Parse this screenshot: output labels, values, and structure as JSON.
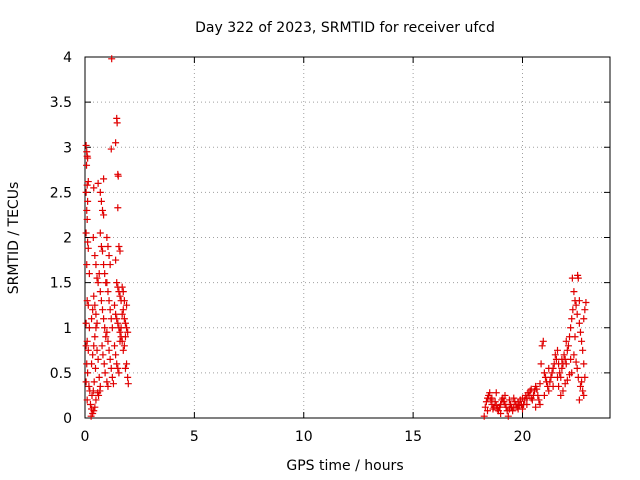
{
  "chart_data": {
    "type": "scatter",
    "title": "Day 322 of 2023, SRMTID for receiver ufcd",
    "xlabel": "GPS time / hours",
    "ylabel": "SRMTID / TECUs",
    "xlim": [
      0,
      24
    ],
    "ylim": [
      0,
      4
    ],
    "xticks": [
      0,
      5,
      10,
      15,
      20
    ],
    "yticks": [
      0,
      0.5,
      1,
      1.5,
      2,
      2.5,
      3,
      3.5,
      4
    ],
    "grid": true,
    "marker": "+",
    "color": "#e00000",
    "series": [
      {
        "name": "SRMTID",
        "points": [
          [
            0.05,
            3.02
          ],
          [
            0.08,
            2.95
          ],
          [
            0.1,
            2.9
          ],
          [
            0.12,
            2.88
          ],
          [
            0.07,
            2.8
          ],
          [
            0.15,
            2.62
          ],
          [
            0.1,
            2.58
          ],
          [
            0.05,
            2.5
          ],
          [
            0.12,
            2.4
          ],
          [
            0.08,
            2.3
          ],
          [
            0.1,
            2.2
          ],
          [
            0.05,
            2.05
          ],
          [
            0.12,
            1.95
          ],
          [
            0.15,
            1.88
          ],
          [
            0.08,
            1.7
          ],
          [
            0.2,
            1.6
          ],
          [
            0.1,
            1.3
          ],
          [
            0.15,
            1.25
          ],
          [
            0.05,
            1.05
          ],
          [
            0.2,
            1.0
          ],
          [
            0.1,
            0.85
          ],
          [
            0.05,
            0.8
          ],
          [
            0.15,
            0.75
          ],
          [
            0.08,
            0.6
          ],
          [
            0.12,
            0.5
          ],
          [
            0.05,
            0.4
          ],
          [
            0.18,
            0.35
          ],
          [
            0.22,
            0.3
          ],
          [
            0.1,
            0.2
          ],
          [
            0.25,
            0.15
          ],
          [
            0.3,
            0.1
          ],
          [
            0.35,
            0.05
          ],
          [
            0.4,
            0.08
          ],
          [
            0.45,
            0.12
          ],
          [
            0.28,
            0.02
          ],
          [
            0.5,
            0.2
          ],
          [
            0.32,
            0.25
          ],
          [
            0.38,
            0.3
          ],
          [
            0.42,
            0.4
          ],
          [
            0.48,
            0.55
          ],
          [
            0.3,
            0.6
          ],
          [
            0.35,
            0.7
          ],
          [
            0.4,
            0.8
          ],
          [
            0.45,
            0.9
          ],
          [
            0.5,
            1.0
          ],
          [
            0.55,
            0.75
          ],
          [
            0.6,
            0.65
          ],
          [
            0.65,
            0.45
          ],
          [
            0.7,
            0.35
          ],
          [
            0.58,
            0.28
          ],
          [
            0.62,
            0.25
          ],
          [
            0.68,
            0.3
          ],
          [
            0.3,
            1.1
          ],
          [
            0.35,
            1.2
          ],
          [
            0.4,
            1.35
          ],
          [
            0.45,
            1.25
          ],
          [
            0.5,
            1.15
          ],
          [
            0.55,
            1.05
          ],
          [
            0.38,
            2.0
          ],
          [
            0.45,
            1.8
          ],
          [
            0.5,
            1.7
          ],
          [
            0.55,
            1.55
          ],
          [
            0.6,
            1.5
          ],
          [
            0.65,
            1.6
          ],
          [
            0.4,
            2.55
          ],
          [
            0.6,
            2.6
          ],
          [
            0.7,
            2.5
          ],
          [
            0.75,
            2.4
          ],
          [
            0.8,
            2.3
          ],
          [
            0.85,
            2.25
          ],
          [
            0.7,
            2.05
          ],
          [
            0.75,
            1.9
          ],
          [
            0.8,
            1.85
          ],
          [
            0.85,
            1.7
          ],
          [
            0.9,
            1.6
          ],
          [
            0.95,
            1.5
          ],
          [
            0.7,
            1.4
          ],
          [
            0.75,
            1.3
          ],
          [
            0.8,
            1.2
          ],
          [
            0.85,
            1.1
          ],
          [
            0.9,
            1.0
          ],
          [
            0.95,
            0.9
          ],
          [
            0.78,
            0.8
          ],
          [
            0.82,
            0.7
          ],
          [
            0.88,
            0.6
          ],
          [
            0.92,
            0.5
          ],
          [
            1.0,
            0.4
          ],
          [
            1.05,
            0.35
          ],
          [
            0.85,
            2.65
          ],
          [
            1.0,
            2.0
          ],
          [
            1.05,
            1.9
          ],
          [
            1.1,
            1.8
          ],
          [
            1.15,
            1.7
          ],
          [
            1.0,
            1.5
          ],
          [
            1.05,
            1.4
          ],
          [
            1.1,
            1.3
          ],
          [
            1.15,
            1.2
          ],
          [
            1.2,
            1.1
          ],
          [
            1.25,
            1.0
          ],
          [
            1.0,
            0.95
          ],
          [
            1.05,
            0.85
          ],
          [
            1.1,
            0.75
          ],
          [
            1.15,
            0.65
          ],
          [
            1.2,
            0.55
          ],
          [
            1.25,
            0.45
          ],
          [
            1.3,
            0.38
          ],
          [
            1.2,
            2.98
          ],
          [
            1.22,
            3.98
          ],
          [
            1.4,
            3.05
          ],
          [
            1.45,
            3.32
          ],
          [
            1.47,
            3.27
          ],
          [
            1.5,
            2.7
          ],
          [
            1.52,
            2.68
          ],
          [
            1.5,
            2.33
          ],
          [
            1.55,
            1.9
          ],
          [
            1.6,
            1.85
          ],
          [
            1.4,
            1.75
          ],
          [
            1.45,
            1.5
          ],
          [
            1.5,
            1.45
          ],
          [
            1.55,
            1.4
          ],
          [
            1.6,
            1.35
          ],
          [
            1.65,
            1.3
          ],
          [
            1.7,
            1.45
          ],
          [
            1.75,
            1.4
          ],
          [
            1.8,
            1.3
          ],
          [
            1.35,
            1.25
          ],
          [
            1.4,
            1.15
          ],
          [
            1.45,
            1.1
          ],
          [
            1.5,
            1.05
          ],
          [
            1.55,
            1.0
          ],
          [
            1.6,
            0.95
          ],
          [
            1.65,
            0.9
          ],
          [
            1.7,
            0.85
          ],
          [
            1.75,
            1.2
          ],
          [
            1.8,
            1.1
          ],
          [
            1.85,
            1.05
          ],
          [
            1.9,
            1.0
          ],
          [
            1.95,
            0.95
          ],
          [
            1.35,
            0.8
          ],
          [
            1.4,
            0.7
          ],
          [
            1.45,
            0.6
          ],
          [
            1.5,
            0.55
          ],
          [
            1.55,
            0.5
          ],
          [
            1.6,
            0.85
          ],
          [
            1.65,
            1.0
          ],
          [
            1.7,
            1.15
          ],
          [
            1.75,
            0.75
          ],
          [
            1.8,
            0.8
          ],
          [
            1.85,
            0.9
          ],
          [
            1.9,
            1.25
          ],
          [
            1.95,
            0.45
          ],
          [
            1.98,
            0.38
          ],
          [
            1.85,
            0.55
          ],
          [
            1.9,
            0.6
          ],
          [
            18.25,
            0.02
          ],
          [
            18.3,
            0.12
          ],
          [
            18.35,
            0.18
          ],
          [
            18.4,
            0.22
          ],
          [
            18.45,
            0.25
          ],
          [
            18.5,
            0.28
          ],
          [
            18.55,
            0.2
          ],
          [
            18.6,
            0.15
          ],
          [
            18.65,
            0.1
          ],
          [
            18.7,
            0.12
          ],
          [
            18.75,
            0.18
          ],
          [
            18.8,
            0.14
          ],
          [
            18.85,
            0.1
          ],
          [
            18.9,
            0.08
          ],
          [
            18.95,
            0.12
          ],
          [
            19.0,
            0.15
          ],
          [
            19.05,
            0.2
          ],
          [
            19.1,
            0.22
          ],
          [
            19.15,
            0.18
          ],
          [
            19.2,
            0.15
          ],
          [
            19.25,
            0.12
          ],
          [
            19.3,
            0.08
          ],
          [
            19.35,
            0.02
          ],
          [
            19.4,
            0.1
          ],
          [
            19.45,
            0.15
          ],
          [
            19.5,
            0.12
          ],
          [
            19.55,
            0.08
          ],
          [
            19.6,
            0.12
          ],
          [
            19.65,
            0.18
          ],
          [
            19.7,
            0.15
          ],
          [
            19.75,
            0.12
          ],
          [
            19.8,
            0.1
          ],
          [
            19.85,
            0.14
          ],
          [
            19.9,
            0.2
          ],
          [
            19.95,
            0.15
          ],
          [
            20.0,
            0.1
          ],
          [
            20.05,
            0.15
          ],
          [
            20.1,
            0.2
          ],
          [
            20.15,
            0.25
          ],
          [
            20.2,
            0.22
          ],
          [
            20.25,
            0.28
          ],
          [
            20.3,
            0.25
          ],
          [
            20.35,
            0.3
          ],
          [
            20.4,
            0.22
          ],
          [
            20.45,
            0.2
          ],
          [
            20.5,
            0.25
          ],
          [
            20.55,
            0.3
          ],
          [
            20.6,
            0.35
          ],
          [
            20.65,
            0.32
          ],
          [
            20.7,
            0.25
          ],
          [
            20.75,
            0.2
          ],
          [
            20.8,
            0.15
          ],
          [
            20.85,
            0.6
          ],
          [
            20.9,
            0.8
          ],
          [
            20.95,
            0.85
          ],
          [
            21.0,
            0.5
          ],
          [
            21.05,
            0.45
          ],
          [
            21.1,
            0.4
          ],
          [
            21.15,
            0.35
          ],
          [
            21.2,
            0.3
          ],
          [
            21.25,
            0.4
          ],
          [
            21.3,
            0.45
          ],
          [
            21.35,
            0.5
          ],
          [
            21.4,
            0.55
          ],
          [
            21.45,
            0.6
          ],
          [
            21.5,
            0.7
          ],
          [
            21.55,
            0.65
          ],
          [
            21.6,
            0.75
          ],
          [
            21.65,
            0.6
          ],
          [
            21.7,
            0.5
          ],
          [
            21.75,
            0.45
          ],
          [
            21.8,
            0.55
          ],
          [
            21.85,
            0.6
          ],
          [
            21.9,
            0.7
          ],
          [
            21.95,
            0.65
          ],
          [
            22.0,
            0.6
          ],
          [
            22.05,
            0.75
          ],
          [
            22.1,
            0.8
          ],
          [
            22.15,
            0.9
          ],
          [
            22.2,
            1.0
          ],
          [
            22.25,
            1.1
          ],
          [
            22.3,
            1.2
          ],
          [
            22.28,
            1.55
          ],
          [
            22.35,
            1.4
          ],
          [
            22.4,
            1.3
          ],
          [
            22.45,
            1.25
          ],
          [
            22.5,
            1.15
          ],
          [
            22.52,
            1.58
          ],
          [
            22.55,
            1.55
          ],
          [
            22.6,
            1.05
          ],
          [
            22.65,
            0.95
          ],
          [
            22.7,
            0.85
          ],
          [
            22.75,
            0.75
          ],
          [
            22.8,
            1.1
          ],
          [
            22.85,
            1.2
          ],
          [
            22.9,
            1.28
          ],
          [
            22.7,
            0.4
          ],
          [
            22.75,
            0.3
          ],
          [
            22.8,
            0.25
          ],
          [
            22.6,
            0.2
          ],
          [
            22.65,
            0.35
          ],
          [
            22.55,
            0.45
          ],
          [
            22.5,
            0.55
          ],
          [
            22.45,
            0.62
          ],
          [
            22.35,
            0.7
          ],
          [
            22.25,
            0.5
          ],
          [
            22.15,
            0.48
          ],
          [
            22.05,
            0.42
          ],
          [
            21.95,
            0.38
          ],
          [
            21.85,
            0.3
          ],
          [
            21.75,
            0.25
          ],
          [
            21.65,
            0.35
          ],
          [
            18.4,
            0.08
          ],
          [
            18.6,
            0.22
          ],
          [
            18.8,
            0.28
          ],
          [
            19.0,
            0.05
          ],
          [
            19.2,
            0.25
          ],
          [
            19.4,
            0.2
          ],
          [
            19.6,
            0.22
          ],
          [
            19.8,
            0.18
          ],
          [
            20.0,
            0.22
          ],
          [
            20.2,
            0.15
          ],
          [
            20.4,
            0.32
          ],
          [
            20.6,
            0.12
          ],
          [
            20.8,
            0.38
          ],
          [
            21.0,
            0.25
          ],
          [
            21.2,
            0.55
          ],
          [
            21.4,
            0.35
          ],
          [
            21.6,
            0.45
          ],
          [
            21.8,
            0.65
          ],
          [
            22.0,
            0.85
          ],
          [
            22.2,
            0.65
          ],
          [
            22.4,
            0.9
          ],
          [
            22.6,
            1.3
          ],
          [
            22.8,
            0.6
          ],
          [
            22.85,
            0.45
          ]
        ]
      }
    ]
  }
}
